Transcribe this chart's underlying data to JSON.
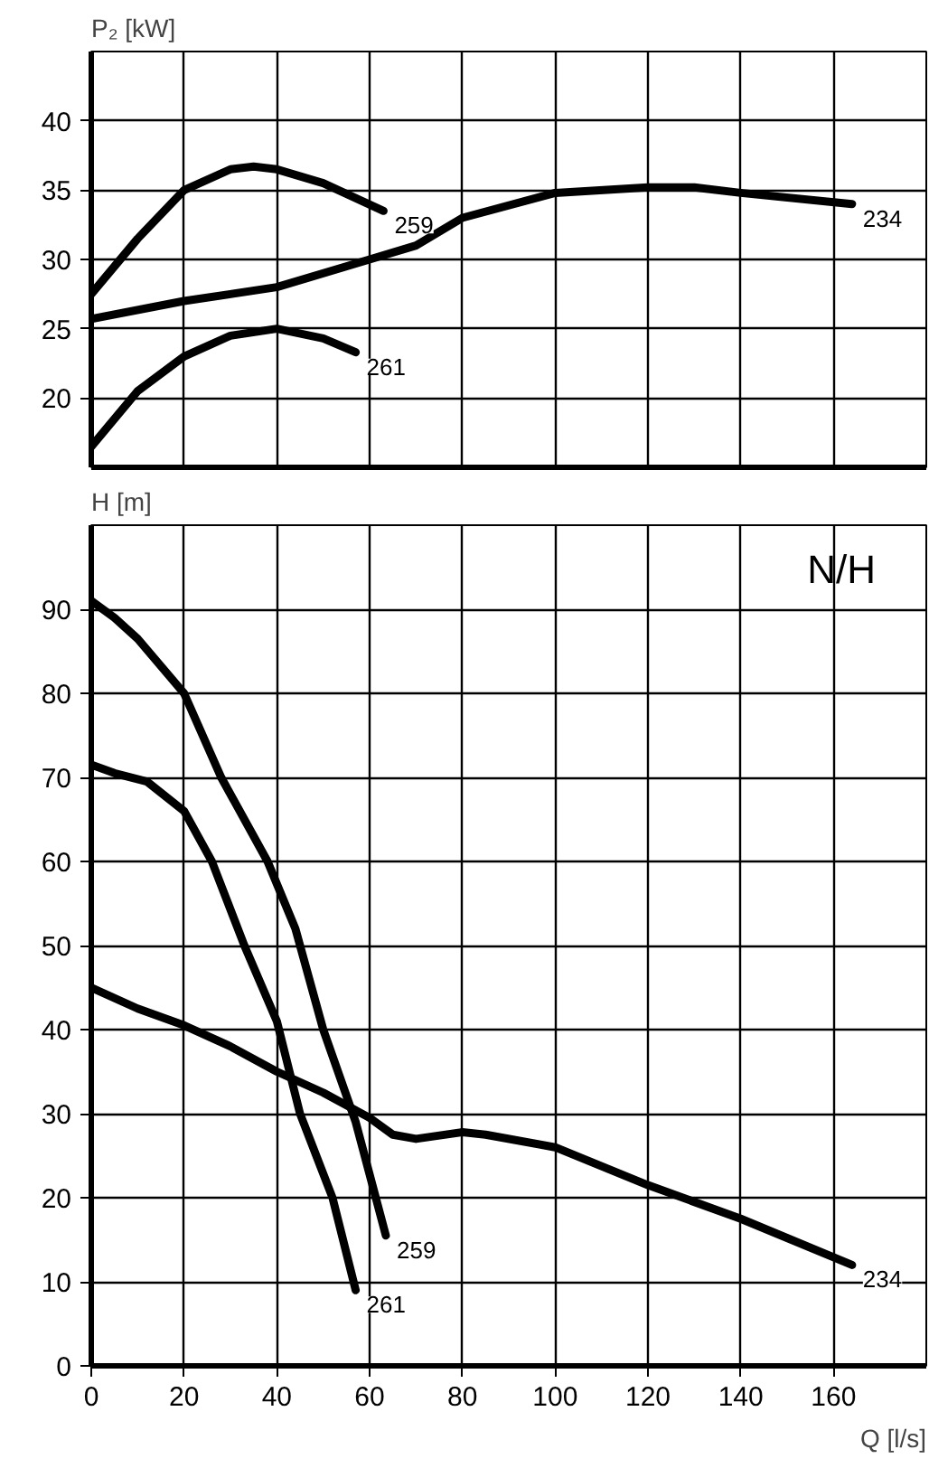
{
  "chart_data": [
    {
      "type": "line",
      "ylabel": "P₂  [kW]",
      "xlim": [
        0,
        180
      ],
      "ylim": [
        15,
        45
      ],
      "xticks": [
        0,
        20,
        40,
        60,
        80,
        100,
        120,
        140,
        160
      ],
      "yticks": [
        20,
        25,
        30,
        35,
        40
      ],
      "grid": true,
      "tick_labels": "y",
      "line_style": "solid",
      "series": [
        {
          "name": "259",
          "color": "#000000",
          "x": [
            0,
            10,
            20,
            30,
            35,
            40,
            50,
            63
          ],
          "values": [
            27.5,
            31.5,
            35,
            36.5,
            36.7,
            36.5,
            35.5,
            33.5
          ]
        },
        {
          "name": "234",
          "color": "#000000",
          "x": [
            0,
            20,
            40,
            60,
            70,
            80,
            100,
            120,
            130,
            140,
            164
          ],
          "values": [
            25.7,
            27,
            28,
            30,
            31,
            33,
            34.8,
            35.2,
            35.2,
            34.8,
            34
          ]
        },
        {
          "name": "261",
          "color": "#000000",
          "x": [
            0,
            10,
            20,
            30,
            40,
            50,
            57
          ],
          "values": [
            16.5,
            20.5,
            23,
            24.5,
            25,
            24.3,
            23.3
          ]
        }
      ]
    },
    {
      "type": "line",
      "ylabel": "H [m]",
      "xlabel": "Q [l/s]",
      "xlim": [
        0,
        180
      ],
      "ylim": [
        0,
        100
      ],
      "xticks": [
        0,
        20,
        40,
        60,
        80,
        100,
        120,
        140,
        160
      ],
      "yticks": [
        0,
        10,
        20,
        30,
        40,
        50,
        60,
        70,
        80,
        90
      ],
      "grid": true,
      "line_style": "solid",
      "annotations": [
        "N/H"
      ],
      "series": [
        {
          "name": "259",
          "color": "#000000",
          "x": [
            0,
            5,
            10,
            20,
            28,
            38,
            44,
            50,
            57,
            63.5
          ],
          "values": [
            91,
            89,
            86.5,
            80,
            70,
            60,
            52,
            40,
            29,
            15.5
          ]
        },
        {
          "name": "261",
          "color": "#000000",
          "x": [
            0,
            5,
            12,
            20,
            26,
            33,
            40,
            45,
            52,
            57
          ],
          "values": [
            71.5,
            70.5,
            69.5,
            66,
            60,
            50,
            41,
            30,
            20,
            9
          ]
        },
        {
          "name": "234",
          "color": "#000000",
          "x": [
            0,
            10,
            20,
            30,
            40,
            50,
            60,
            65,
            70,
            80,
            85,
            100,
            120,
            140,
            164
          ],
          "values": [
            45,
            42.5,
            40.5,
            38,
            35,
            32.5,
            29.5,
            27.5,
            27,
            27.8,
            27.5,
            26,
            21.5,
            17.5,
            12
          ]
        }
      ]
    }
  ]
}
